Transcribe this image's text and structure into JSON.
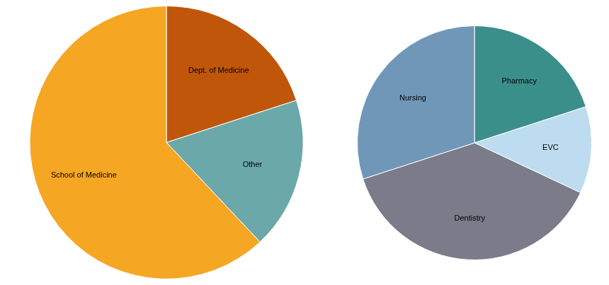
{
  "chart_data": [
    {
      "type": "pie",
      "categories": [
        "Dept. of Medicine",
        "Other",
        "School of Medicine"
      ],
      "values": [
        20,
        18,
        62
      ],
      "colors": [
        "#C0560A",
        "#6BA8A9",
        "#F5A623"
      ]
    },
    {
      "type": "pie",
      "categories": [
        "Pharmacy",
        "EVC",
        "Dentistry",
        "Nursing"
      ],
      "values": [
        20,
        12,
        38,
        30
      ],
      "colors": [
        "#3B8F8A",
        "#BDDCF0",
        "#7B7B8A",
        "#7097B8"
      ]
    }
  ]
}
